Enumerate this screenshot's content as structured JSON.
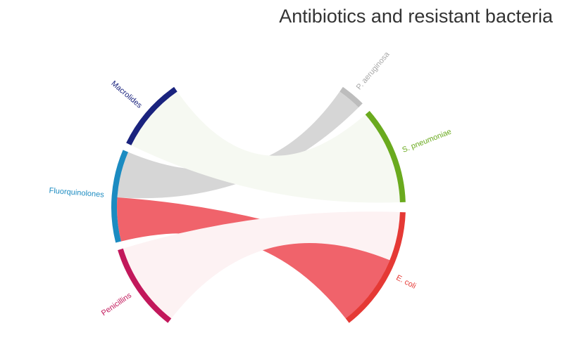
{
  "chart_data": {
    "type": "chord",
    "title": "Antibiotics and resistant bacteria",
    "groups": [
      {
        "id": "macrolides",
        "name": "Macrolides",
        "color": "#1a237e",
        "angle_start": 206,
        "angle_end": 235
      },
      {
        "id": "fluoroquinolones",
        "name": "Fluorquinolones",
        "color": "#1b8bc1",
        "angle_start": 166,
        "angle_end": 203
      },
      {
        "id": "penicillins",
        "name": "Penicillins",
        "color": "#c2185b",
        "angle_start": 128,
        "angle_end": 163
      },
      {
        "id": "p_aeruginosa",
        "name": "P. aeruginosa",
        "color": "#bdbdbd",
        "angle_start": -55,
        "angle_end": -45
      },
      {
        "id": "s_pneumoniae",
        "name": "S. pneumoniae",
        "color": "#6aaa1e",
        "angle_start": -41,
        "angle_end": -2
      },
      {
        "id": "e_coli",
        "name": "E. coli",
        "color": "#e53935",
        "angle_start": 2,
        "angle_end": 52
      }
    ],
    "links": [
      {
        "source": "fluoroquinolones",
        "target": "p_aeruginosa",
        "source_angles": [
          184,
          203
        ],
        "target_angles": [
          -55,
          -45
        ],
        "color": "#d6d6d6"
      },
      {
        "source": "fluoroquinolones",
        "target": "e_coli",
        "source_angles": [
          166,
          184
        ],
        "target_angles": [
          22,
          52
        ],
        "color": "#f0636b"
      },
      {
        "source": "macrolides",
        "target": "s_pneumoniae",
        "source_angles": [
          206,
          235
        ],
        "target_angles": [
          -41,
          -2
        ],
        "color": "#f6f9f2"
      },
      {
        "source": "penicillins",
        "target": "e_coli",
        "source_angles": [
          128,
          163
        ],
        "target_angles": [
          2,
          22
        ],
        "color": "#fdf2f3"
      }
    ]
  }
}
